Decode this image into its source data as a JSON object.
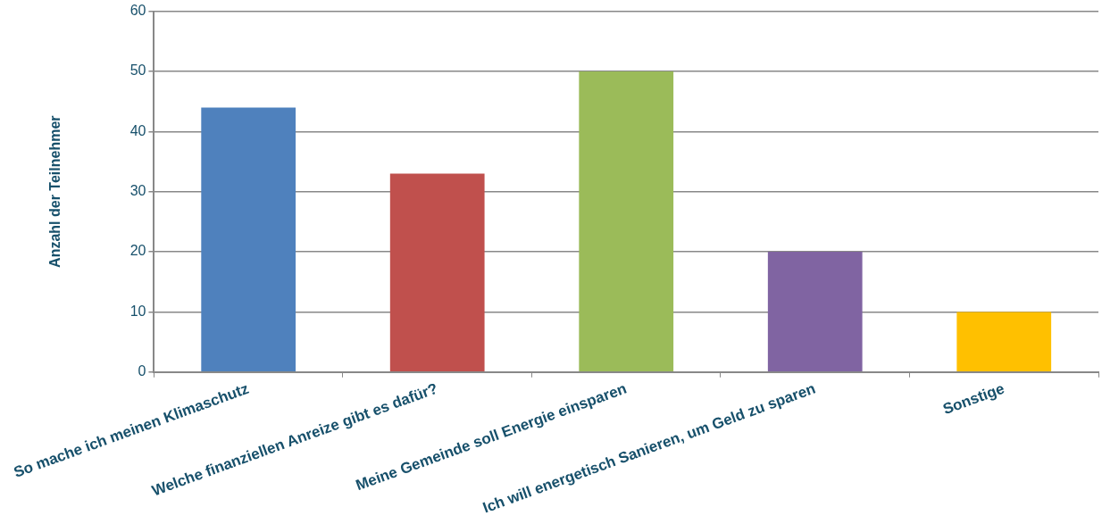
{
  "chart_data": {
    "type": "bar",
    "ylabel": "Anzahl der Teilnehmer",
    "categories": [
      "So mache ich meinen Klimaschutz",
      "Welche finanziellen Anreize gibt es dafür?",
      "Meine Gemeinde soll Energie einsparen",
      "Ich will energetisch Sanieren, um Geld zu sparen",
      "Sonstige"
    ],
    "values": [
      44,
      33,
      50,
      20,
      10
    ],
    "colors": [
      "#4f81bd",
      "#c0504d",
      "#9bbb59",
      "#8064a2",
      "#ffc000"
    ],
    "ylim": [
      0,
      60
    ],
    "yticks": [
      0,
      10,
      20,
      30,
      40,
      50,
      60
    ],
    "grid": "y",
    "legend": false
  }
}
